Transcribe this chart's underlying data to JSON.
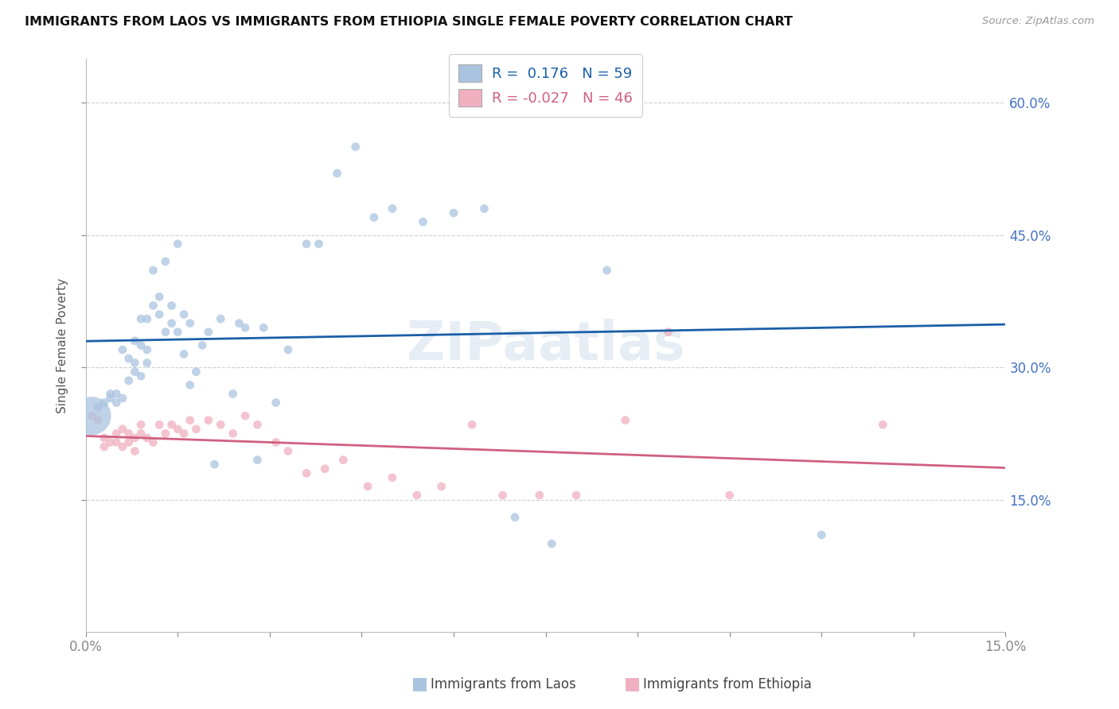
{
  "title": "IMMIGRANTS FROM LAOS VS IMMIGRANTS FROM ETHIOPIA SINGLE FEMALE POVERTY CORRELATION CHART",
  "source": "Source: ZipAtlas.com",
  "ylabel": "Single Female Poverty",
  "xlim": [
    0.0,
    0.15
  ],
  "ylim": [
    0.0,
    0.65
  ],
  "background_color": "#ffffff",
  "grid_color": "#d0d0d0",
  "blue_color": "#aac4e0",
  "pink_color": "#f0b0c0",
  "blue_line_color": "#1a5fa8",
  "pink_line_color": "#d06080",
  "legend_R1": "0.176",
  "legend_N1": "59",
  "legend_R2": "-0.027",
  "legend_N2": "46",
  "label_laos": "Immigrants from Laos",
  "label_ethiopia": "Immigrants from Ethiopia",
  "watermark": "ZIPaatlas",
  "laos_x": [
    0.001,
    0.002,
    0.003,
    0.004,
    0.004,
    0.005,
    0.005,
    0.006,
    0.006,
    0.007,
    0.007,
    0.008,
    0.008,
    0.008,
    0.009,
    0.009,
    0.009,
    0.01,
    0.01,
    0.01,
    0.011,
    0.011,
    0.012,
    0.012,
    0.013,
    0.013,
    0.014,
    0.014,
    0.015,
    0.015,
    0.016,
    0.016,
    0.017,
    0.017,
    0.018,
    0.019,
    0.02,
    0.021,
    0.022,
    0.024,
    0.025,
    0.026,
    0.028,
    0.029,
    0.031,
    0.033,
    0.036,
    0.038,
    0.041,
    0.044,
    0.047,
    0.05,
    0.055,
    0.06,
    0.065,
    0.07,
    0.076,
    0.085,
    0.12
  ],
  "laos_y": [
    0.245,
    0.255,
    0.26,
    0.265,
    0.27,
    0.26,
    0.27,
    0.265,
    0.32,
    0.285,
    0.31,
    0.305,
    0.295,
    0.33,
    0.29,
    0.325,
    0.355,
    0.305,
    0.32,
    0.355,
    0.37,
    0.41,
    0.36,
    0.38,
    0.34,
    0.42,
    0.35,
    0.37,
    0.34,
    0.44,
    0.315,
    0.36,
    0.35,
    0.28,
    0.295,
    0.325,
    0.34,
    0.19,
    0.355,
    0.27,
    0.35,
    0.345,
    0.195,
    0.345,
    0.26,
    0.32,
    0.44,
    0.44,
    0.52,
    0.55,
    0.47,
    0.48,
    0.465,
    0.475,
    0.48,
    0.13,
    0.1,
    0.41,
    0.11
  ],
  "laos_sizes": [
    60,
    60,
    60,
    60,
    60,
    60,
    60,
    60,
    60,
    60,
    60,
    60,
    60,
    60,
    60,
    60,
    60,
    60,
    60,
    60,
    60,
    60,
    60,
    60,
    60,
    60,
    60,
    60,
    60,
    60,
    60,
    60,
    60,
    60,
    60,
    60,
    60,
    60,
    60,
    60,
    60,
    60,
    60,
    60,
    60,
    60,
    60,
    60,
    60,
    60,
    60,
    60,
    60,
    60,
    60,
    60,
    60,
    60,
    60
  ],
  "laos_large_idx": 0,
  "laos_large_size": 1200,
  "ethiopia_x": [
    0.001,
    0.002,
    0.003,
    0.003,
    0.004,
    0.005,
    0.005,
    0.006,
    0.006,
    0.007,
    0.007,
    0.008,
    0.008,
    0.009,
    0.009,
    0.01,
    0.011,
    0.012,
    0.013,
    0.014,
    0.015,
    0.016,
    0.017,
    0.018,
    0.02,
    0.022,
    0.024,
    0.026,
    0.028,
    0.031,
    0.033,
    0.036,
    0.039,
    0.042,
    0.046,
    0.05,
    0.054,
    0.058,
    0.063,
    0.068,
    0.074,
    0.08,
    0.088,
    0.095,
    0.105,
    0.13
  ],
  "ethiopia_y": [
    0.245,
    0.24,
    0.22,
    0.21,
    0.215,
    0.225,
    0.215,
    0.21,
    0.23,
    0.225,
    0.215,
    0.22,
    0.205,
    0.235,
    0.225,
    0.22,
    0.215,
    0.235,
    0.225,
    0.235,
    0.23,
    0.225,
    0.24,
    0.23,
    0.24,
    0.235,
    0.225,
    0.245,
    0.235,
    0.215,
    0.205,
    0.18,
    0.185,
    0.195,
    0.165,
    0.175,
    0.155,
    0.165,
    0.235,
    0.155,
    0.155,
    0.155,
    0.24,
    0.34,
    0.155,
    0.235
  ],
  "ethiopia_sizes": [
    60,
    60,
    60,
    60,
    60,
    60,
    60,
    60,
    60,
    60,
    60,
    60,
    60,
    60,
    60,
    60,
    60,
    60,
    60,
    60,
    60,
    60,
    60,
    60,
    60,
    60,
    60,
    60,
    60,
    60,
    60,
    60,
    60,
    60,
    60,
    60,
    60,
    60,
    60,
    60,
    60,
    60,
    60,
    60,
    60,
    60
  ]
}
